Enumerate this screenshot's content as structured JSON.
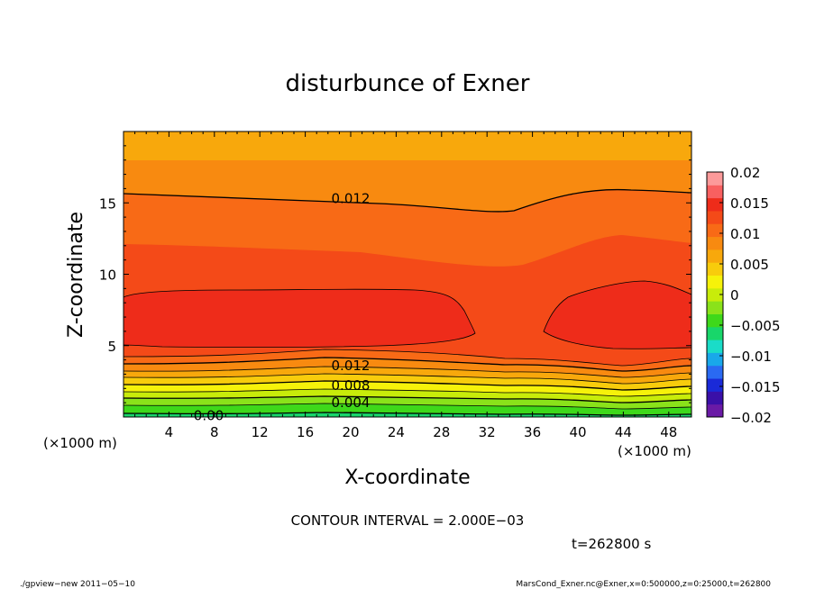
{
  "chart_data": {
    "type": "contour",
    "title": "disturbunce of Exner",
    "xlabel": "X-coordinate",
    "ylabel": "Z-coordinate",
    "x_unit": "(×1000 m)",
    "y_unit": "(×1000 m)",
    "xlim": [
      0,
      50
    ],
    "ylim": [
      0,
      20
    ],
    "x_ticks": [
      4,
      8,
      12,
      16,
      20,
      24,
      28,
      32,
      36,
      40,
      44,
      48
    ],
    "y_ticks": [
      5,
      10,
      15
    ],
    "colorbar": {
      "ticks": [
        "0.02",
        "0.015",
        "0.01",
        "0.005",
        "0",
        "−0.005",
        "−0.01",
        "−0.015",
        "−0.02"
      ],
      "range": [
        -0.02,
        0.02
      ],
      "colors": [
        "#6a1aa6",
        "#3a10a8",
        "#1a2ad8",
        "#2a6af2",
        "#19a8ea",
        "#1adcc8",
        "#18d66a",
        "#3ed81a",
        "#8ae21a",
        "#c8ec0a",
        "#f6f20a",
        "#f8cc0c",
        "#f8a80c",
        "#f88a10",
        "#f86a16",
        "#f44a18",
        "#ee2c1a",
        "#f86060",
        "#fc9a9a"
      ]
    },
    "contour_interval": "2.000E-03",
    "contour_labels": [
      {
        "text": "0.012",
        "x": 20,
        "z": 15.3
      },
      {
        "text": "0.012",
        "x": 20,
        "z": 3.6
      },
      {
        "text": "0.008",
        "x": 20,
        "z": 2.2
      },
      {
        "text": "0.004",
        "x": 20,
        "z": 1.0
      },
      {
        "text": "0.00",
        "x": 7.5,
        "z": 0.1
      }
    ],
    "annotations": {
      "contour_interval_text": "CONTOUR INTERVAL = 2.000E−03",
      "time_text": "t=262800 s",
      "footer_left": "./gpview−new  2011−05−10",
      "footer_right": "MarsCond_Exner.nc@Exner,x=0:500000,z=0:25000,t=262800"
    }
  }
}
